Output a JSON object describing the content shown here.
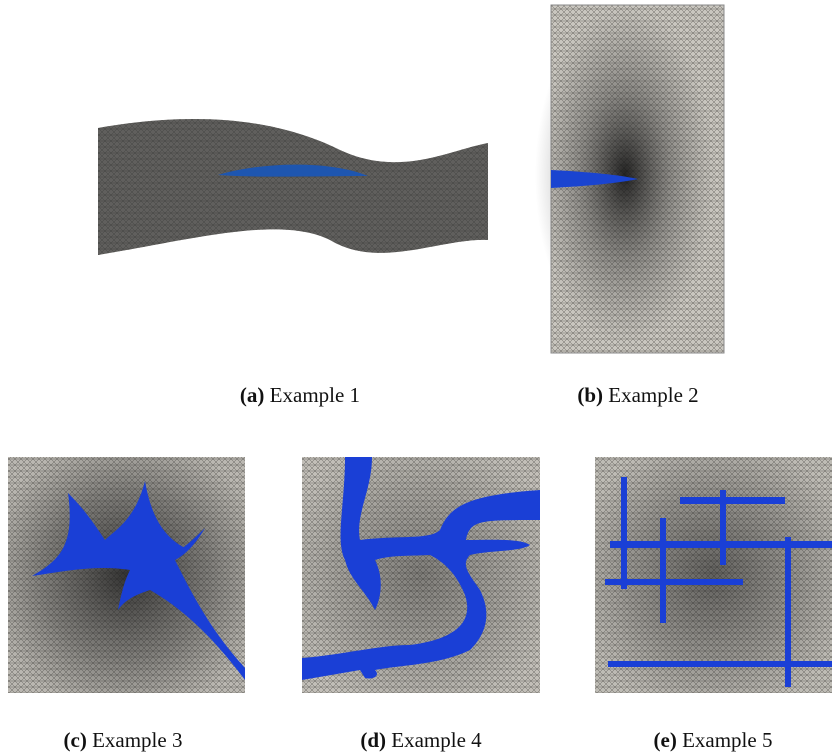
{
  "figure": {
    "panels": [
      {
        "label": "(a)",
        "caption": "Example 1"
      },
      {
        "label": "(b)",
        "caption": "Example 2"
      },
      {
        "label": "(c)",
        "caption": "Example 3"
      },
      {
        "label": "(d)",
        "caption": "Example 4"
      },
      {
        "label": "(e)",
        "caption": "Example 5"
      }
    ]
  }
}
